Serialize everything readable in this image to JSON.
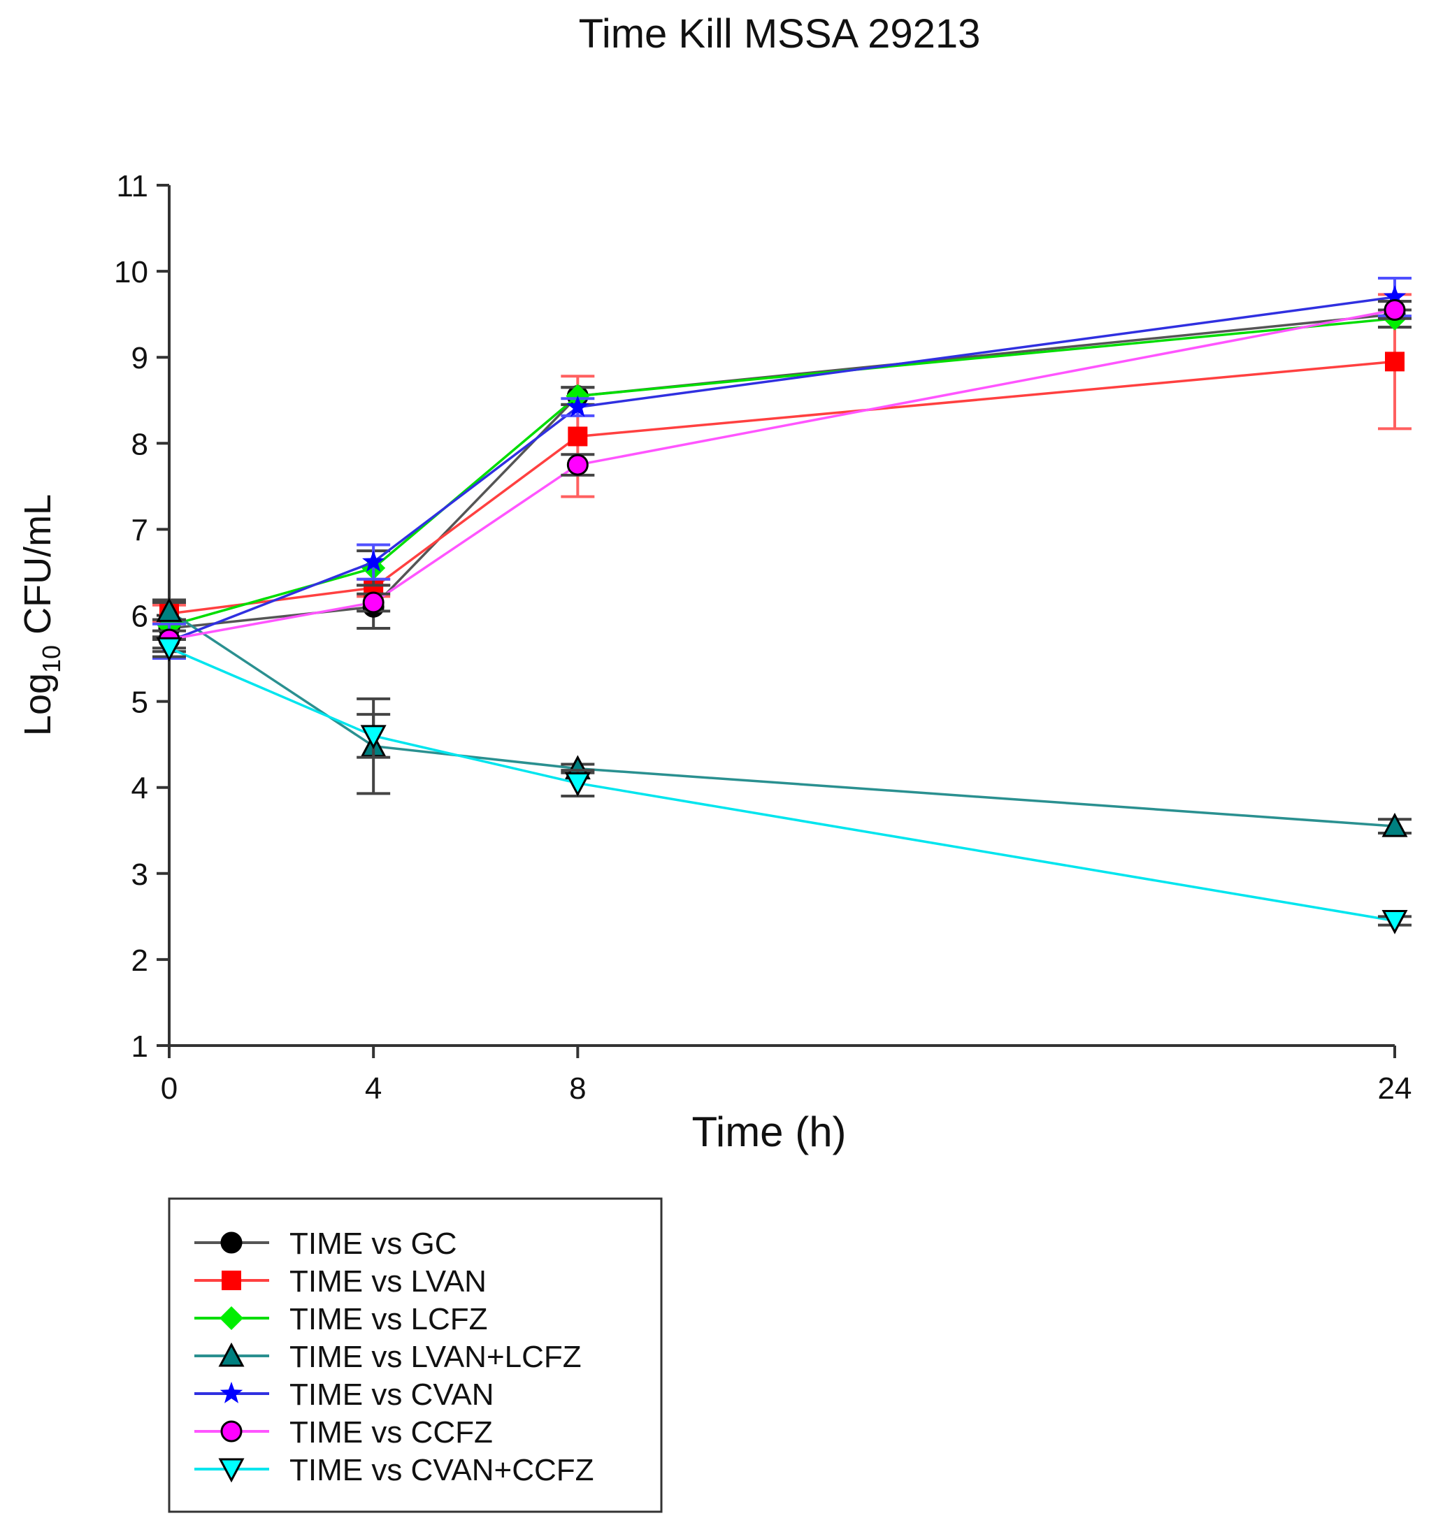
{
  "chart_data": {
    "type": "line",
    "title": "Time Kill MSSA 29213",
    "xlabel": "Time (h)",
    "ylabel_main": "Log",
    "ylabel_sub": "10",
    "ylabel_rest": " CFU/mL",
    "xlim": [
      0,
      24
    ],
    "ylim": [
      1,
      11
    ],
    "xticks": [
      0,
      4,
      8,
      24
    ],
    "yticks": [
      1,
      2,
      3,
      4,
      5,
      6,
      7,
      8,
      9,
      10,
      11
    ],
    "x": [
      0,
      4,
      8,
      24
    ],
    "legend_position": "bottom-left",
    "series": [
      {
        "name": "TIME vs GC",
        "color": "#000000",
        "line": "#555555",
        "marker": "circle",
        "values": [
          5.85,
          6.1,
          8.55,
          9.5
        ],
        "err": [
          0.1,
          0.25,
          0.1,
          0.15
        ]
      },
      {
        "name": "TIME vs LVAN",
        "color": "#ff0000",
        "line": "#ff4040",
        "marker": "square",
        "values": [
          6.02,
          6.32,
          8.08,
          8.95
        ],
        "err": [
          0.1,
          0.1,
          0.7,
          0.78
        ]
      },
      {
        "name": "TIME vs LCFZ",
        "color": "#00ee00",
        "line": "#00dd00",
        "marker": "diamond",
        "values": [
          5.88,
          6.55,
          8.55,
          9.45
        ],
        "err": [
          0.3,
          0.2,
          0.1,
          0.1
        ]
      },
      {
        "name": "TIME vs LVAN+LCFZ",
        "color": "#008080",
        "line": "#2a9090",
        "marker": "triangle-up",
        "values": [
          6.05,
          4.48,
          4.22,
          3.55
        ],
        "err": [
          0.1,
          0.55,
          0.05,
          0.08
        ]
      },
      {
        "name": "TIME vs CVAN",
        "color": "#0000ff",
        "line": "#3030e0",
        "marker": "star",
        "values": [
          5.7,
          6.62,
          8.42,
          9.7
        ],
        "err": [
          0.2,
          0.2,
          0.1,
          0.22
        ]
      },
      {
        "name": "TIME vs CCFZ",
        "color": "#ff00ff",
        "line": "#ff55ff",
        "marker": "circle",
        "values": [
          5.72,
          6.15,
          7.75,
          9.55
        ],
        "err": [
          0.1,
          0.1,
          0.12,
          0.1
        ]
      },
      {
        "name": "TIME vs CVAN+CCFZ",
        "color": "#00ffff",
        "line": "#00e5ee",
        "marker": "triangle-down",
        "values": [
          5.62,
          4.6,
          4.05,
          2.45
        ],
        "err": [
          0.1,
          0.25,
          0.15,
          0.05
        ]
      }
    ]
  }
}
